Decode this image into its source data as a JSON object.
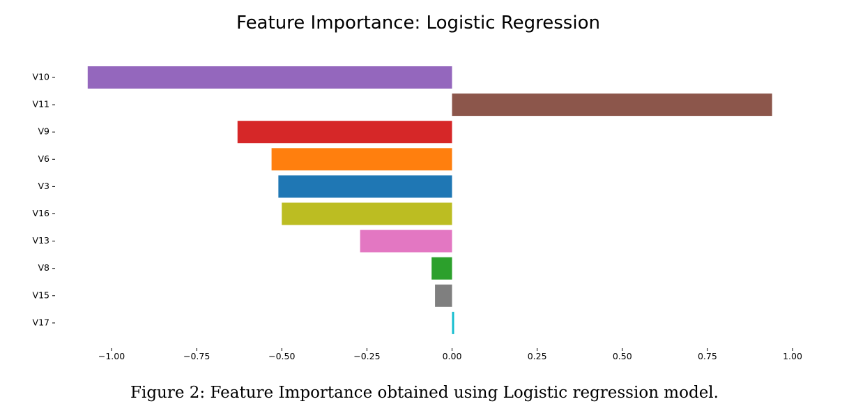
{
  "chart_data": {
    "type": "bar",
    "orientation": "horizontal",
    "title": "Feature Importance: Logistic Regression",
    "xlabel": "",
    "ylabel": "",
    "xlim": [
      -1.1,
      1.05
    ],
    "xticks": [
      -1.0,
      -0.75,
      -0.5,
      -0.25,
      0.0,
      0.25,
      0.5,
      0.75,
      1.0
    ],
    "xtick_labels": [
      "−1.00",
      "−0.75",
      "−0.50",
      "−0.25",
      "0.00",
      "0.25",
      "0.50",
      "0.75",
      "1.00"
    ],
    "grid": false,
    "categories": [
      "V10",
      "V11",
      "V9",
      "V6",
      "V3",
      "V16",
      "V13",
      "V8",
      "V15",
      "V17"
    ],
    "values": [
      -1.07,
      0.94,
      -0.63,
      -0.53,
      -0.51,
      -0.5,
      -0.27,
      -0.06,
      -0.05,
      0.004
    ],
    "colors": [
      "#9467bd",
      "#8c564b",
      "#d62728",
      "#ff7f0e",
      "#1f77b4",
      "#bcbd22",
      "#e377c2",
      "#2ca02c",
      "#7f7f7f",
      "#17becf"
    ]
  },
  "caption": "Figure 2: Feature Importance obtained using Logistic regression model."
}
